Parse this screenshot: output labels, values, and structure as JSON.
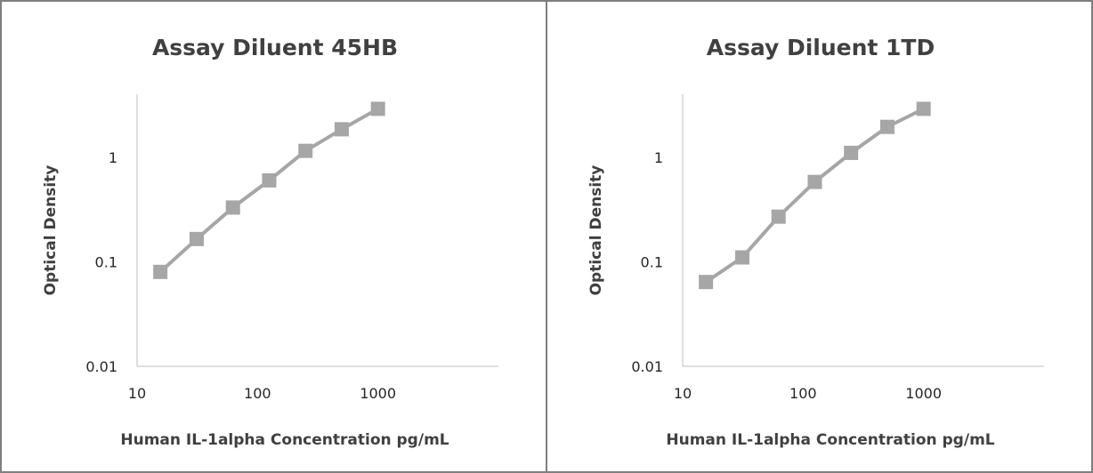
{
  "chart_data": [
    {
      "type": "line",
      "title": "Assay Diluent 45HB",
      "xlabel": "Human IL-1alpha  Concentration pg/mL",
      "ylabel": "Optical  Density",
      "xscale": "log",
      "yscale": "log",
      "xlim": [
        10,
        10000
      ],
      "ylim": [
        0.01,
        4
      ],
      "xticks": [
        10,
        100,
        1000
      ],
      "xtick_labels": [
        "10",
        "100",
        "1000"
      ],
      "yticks": [
        0.01,
        0.1,
        1
      ],
      "ytick_labels": [
        "0.01",
        "0.1",
        "1"
      ],
      "grid": false,
      "legend": "none",
      "series": [
        {
          "x": [
            15.6,
            31.25,
            62.5,
            125,
            250,
            500,
            1000
          ],
          "values": [
            0.08,
            0.165,
            0.33,
            0.6,
            1.15,
            1.85,
            2.9
          ],
          "color": "#a6a6a6",
          "marker": "square"
        }
      ]
    },
    {
      "type": "line",
      "title": "Assay Diluent 1TD",
      "xlabel": "Human IL-1alpha  Concentration pg/mL",
      "ylabel": "Optical  Density",
      "xscale": "log",
      "yscale": "log",
      "xlim": [
        10,
        10000
      ],
      "ylim": [
        0.01,
        4
      ],
      "xticks": [
        10,
        100,
        1000
      ],
      "xtick_labels": [
        "10",
        "100",
        "1000"
      ],
      "yticks": [
        0.01,
        0.1,
        1
      ],
      "ytick_labels": [
        "0.01",
        "0.1",
        "1"
      ],
      "grid": false,
      "legend": "none",
      "series": [
        {
          "x": [
            15.6,
            31.25,
            62.5,
            125,
            250,
            500,
            1000
          ],
          "values": [
            0.064,
            0.11,
            0.27,
            0.58,
            1.1,
            1.95,
            2.9
          ],
          "color": "#a6a6a6",
          "marker": "square"
        }
      ]
    }
  ]
}
